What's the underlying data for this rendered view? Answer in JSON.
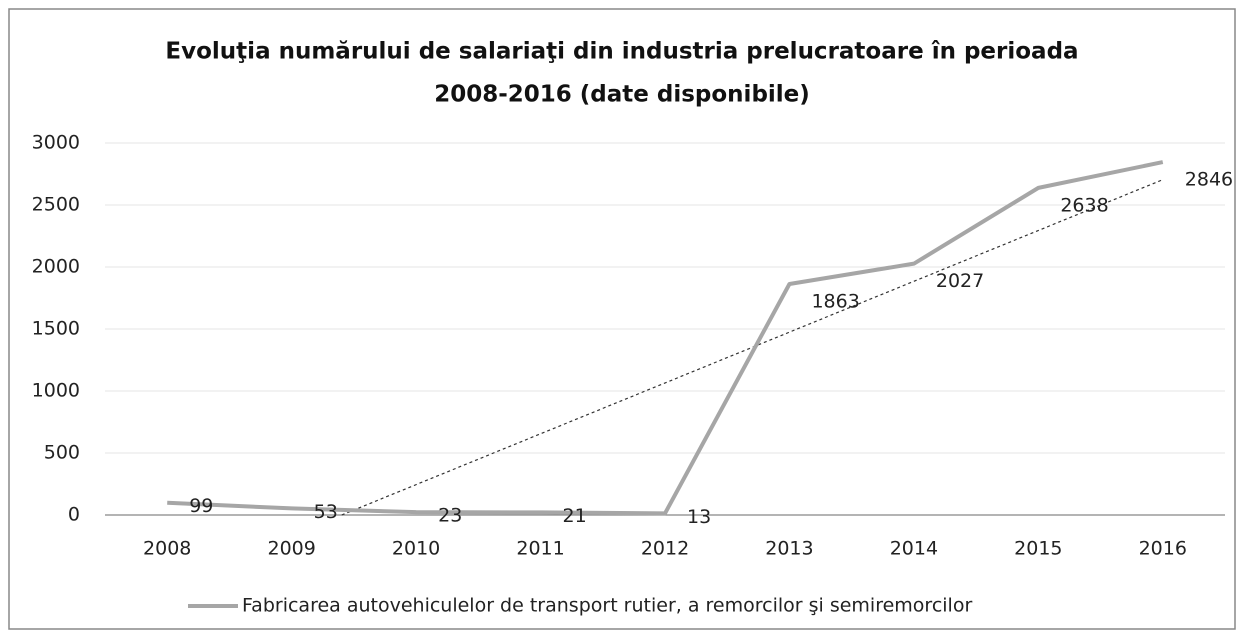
{
  "chart_data": {
    "type": "line",
    "title": [
      "Evoluţia numărului de salariaţi din industria prelucratoare în perioada",
      "2008-2016 (date disponibile)"
    ],
    "categories": [
      "2008",
      "2009",
      "2010",
      "2011",
      "2012",
      "2013",
      "2014",
      "2015",
      "2016"
    ],
    "series": [
      {
        "name": "Fabricarea autovehiculelor de transport rutier, a remorcilor şi semiremorcilor",
        "color": "#a6a6a6",
        "values": [
          99,
          53,
          23,
          21,
          13,
          1863,
          2027,
          2638,
          2846
        ]
      }
    ],
    "trendline": "linear",
    "ylim": [
      0,
      3000
    ],
    "yticks": [
      0,
      500,
      1000,
      1500,
      2000,
      2500,
      3000
    ],
    "grid": true,
    "legend": "bottom"
  }
}
